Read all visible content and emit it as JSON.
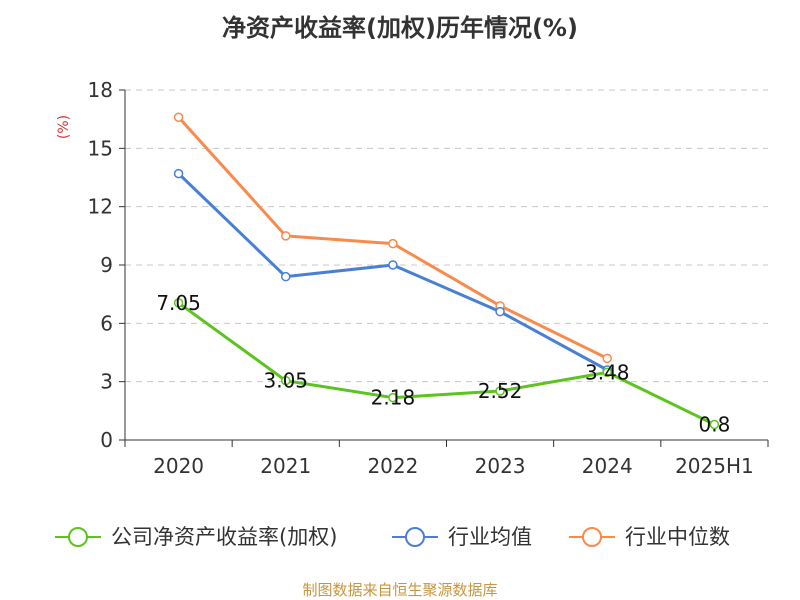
{
  "title": "净资产收益率(加权)历年情况(%)",
  "source": "制图数据来自恒生聚源数据库",
  "chart_data": {
    "type": "line",
    "title": "净资产收益率(加权)历年情况(%)",
    "ylabel": "(%)",
    "xlabel": "",
    "categories": [
      "2020",
      "2021",
      "2022",
      "2023",
      "2024",
      "2025H1"
    ],
    "ylim": [
      0,
      18
    ],
    "yticks": [
      0,
      3,
      6,
      9,
      12,
      15,
      18
    ],
    "grid": true,
    "legend_position": "bottom",
    "series": [
      {
        "name": "公司净资产收益率(加权)",
        "color": "#5cc31f",
        "values": [
          7.05,
          3.05,
          2.18,
          2.52,
          3.48,
          0.8
        ],
        "labels": [
          "7.05",
          "3.05",
          "2.18",
          "2.52",
          "3.48",
          "0.8"
        ]
      },
      {
        "name": "行业均值",
        "color": "#4a7fd6",
        "values": [
          13.7,
          8.4,
          9.0,
          6.6,
          3.6,
          null
        ],
        "labels": []
      },
      {
        "name": "行业中位数",
        "color": "#f88a4c",
        "values": [
          16.6,
          10.5,
          10.1,
          6.9,
          4.2,
          null
        ],
        "labels": []
      }
    ]
  }
}
